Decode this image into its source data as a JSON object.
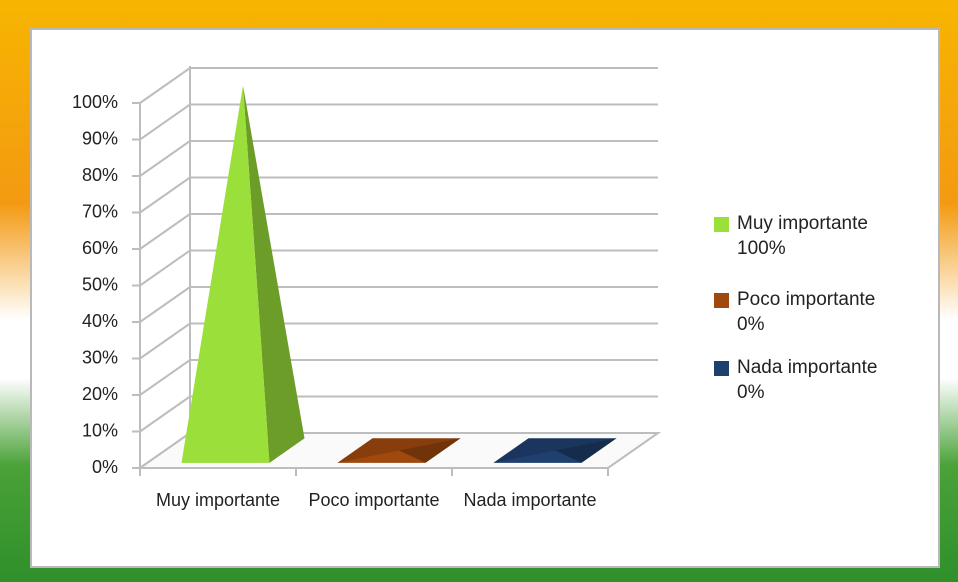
{
  "chart_data": {
    "type": "pyramid3d",
    "categories": [
      "Muy importante",
      "Poco importante",
      "Nada importante"
    ],
    "series": [
      {
        "name": "Muy importante",
        "color": "#9be03a",
        "values": [
          100,
          null,
          null
        ],
        "value_labels": [
          "100%",
          null,
          null
        ]
      },
      {
        "name": "Poco importante",
        "color": "#a0490e",
        "values": [
          null,
          0,
          null
        ],
        "value_labels": [
          null,
          "0%",
          null
        ]
      },
      {
        "name": "Nada importante",
        "color": "#1f3f6e",
        "values": [
          null,
          null,
          0
        ],
        "value_labels": [
          null,
          null,
          "0%"
        ]
      }
    ],
    "ylim": [
      0,
      100
    ],
    "yticks": [
      {
        "value": 0,
        "label": "0%"
      },
      {
        "value": 10,
        "label": "10%"
      },
      {
        "value": 20,
        "label": "20%"
      },
      {
        "value": 30,
        "label": "30%"
      },
      {
        "value": 40,
        "label": "40%"
      },
      {
        "value": 50,
        "label": "50%"
      },
      {
        "value": 60,
        "label": "60%"
      },
      {
        "value": 70,
        "label": "70%"
      },
      {
        "value": 80,
        "label": "80%"
      },
      {
        "value": 90,
        "label": "90%"
      },
      {
        "value": 100,
        "label": "100%"
      }
    ],
    "grid": true,
    "legend": "right"
  }
}
